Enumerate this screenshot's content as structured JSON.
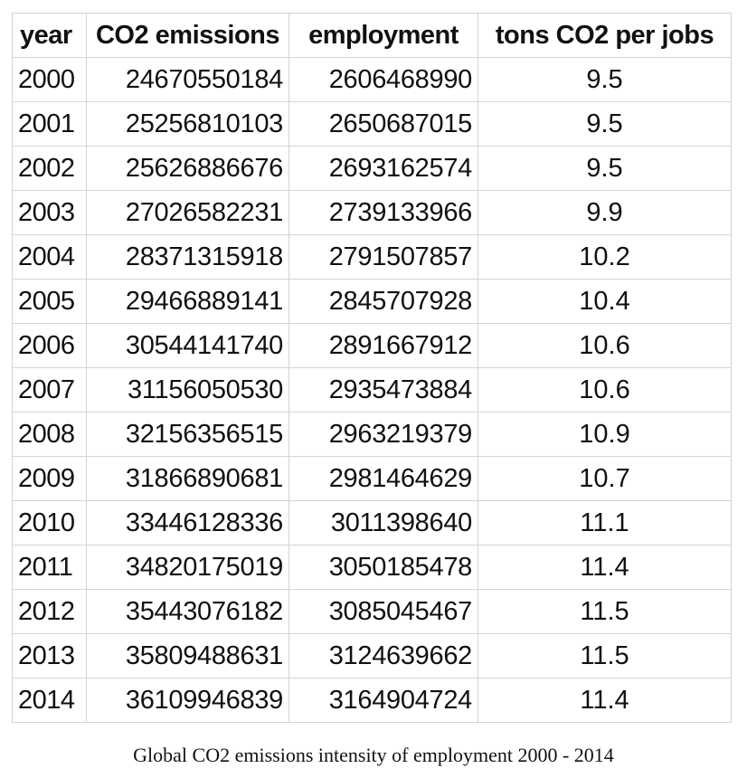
{
  "table": {
    "headers": [
      "year",
      "CO2 emissions",
      "employment",
      "tons CO2 per jobs"
    ],
    "rows": [
      [
        "2000",
        "24670550184",
        "2606468990",
        "9.5"
      ],
      [
        "2001",
        "25256810103",
        "2650687015",
        "9.5"
      ],
      [
        "2002",
        "25626886676",
        "2693162574",
        "9.5"
      ],
      [
        "2003",
        "27026582231",
        "2739133966",
        "9.9"
      ],
      [
        "2004",
        "28371315918",
        "2791507857",
        "10.2"
      ],
      [
        "2005",
        "29466889141",
        "2845707928",
        "10.4"
      ],
      [
        "2006",
        "30544141740",
        "2891667912",
        "10.6"
      ],
      [
        "2007",
        "31156050530",
        "2935473884",
        "10.6"
      ],
      [
        "2008",
        "32156356515",
        "2963219379",
        "10.9"
      ],
      [
        "2009",
        "31866890681",
        "2981464629",
        "10.7"
      ],
      [
        "2010",
        "33446128336",
        "3011398640",
        "11.1"
      ],
      [
        "2011",
        "34820175019",
        "3050185478",
        "11.4"
      ],
      [
        "2012",
        "35443076182",
        "3085045467",
        "11.5"
      ],
      [
        "2013",
        "35809488631",
        "3124639662",
        "11.5"
      ],
      [
        "2014",
        "36109946839",
        "3164904724",
        "11.4"
      ]
    ]
  },
  "caption": "Global CO2 emissions intensity of employment 2000 - 2014",
  "colors": {
    "grid": "#d4d4d4",
    "text": "#111111",
    "background": "#ffffff"
  }
}
